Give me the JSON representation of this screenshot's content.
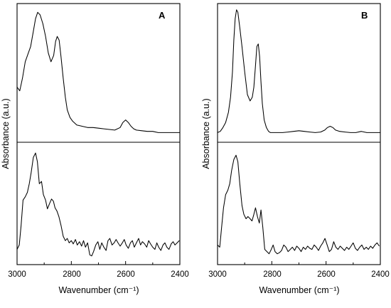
{
  "figure": {
    "panels": [
      {
        "letter": "A",
        "ylabel": "Absorbance (a.u.)",
        "xlabel": "Wavenumber (cm⁻¹)"
      },
      {
        "letter": "B",
        "ylabel": "Absorbance (a.u.)",
        "xlabel": "Wavenumber (cm⁻¹)"
      }
    ],
    "xticks": [
      "3000",
      "2800",
      "2600",
      "2400"
    ]
  },
  "chart_data": [
    {
      "type": "line",
      "panel": "A",
      "subplot": "top",
      "xlabel": "Wavenumber (cm⁻¹)",
      "ylabel": "Absorbance (a.u.)",
      "xlim": [
        3000,
        2400
      ],
      "ylim": [
        0,
        1
      ],
      "xticks": [
        3000,
        2800,
        2600,
        2400
      ],
      "series": [
        {
          "x": [
            3000,
            2990,
            2980,
            2970,
            2960,
            2950,
            2940,
            2932,
            2924,
            2915,
            2905,
            2895,
            2885,
            2875,
            2865,
            2858,
            2852,
            2845,
            2838,
            2830,
            2822,
            2815,
            2805,
            2795,
            2780,
            2760,
            2740,
            2720,
            2700,
            2680,
            2660,
            2640,
            2620,
            2610,
            2600,
            2590,
            2580,
            2570,
            2560,
            2540,
            2520,
            2500,
            2480,
            2460,
            2440,
            2420,
            2400
          ],
          "y": [
            0.38,
            0.35,
            0.45,
            0.58,
            0.64,
            0.7,
            0.82,
            0.92,
            0.97,
            0.95,
            0.88,
            0.78,
            0.65,
            0.58,
            0.63,
            0.74,
            0.78,
            0.75,
            0.62,
            0.45,
            0.3,
            0.2,
            0.14,
            0.11,
            0.08,
            0.07,
            0.06,
            0.06,
            0.055,
            0.05,
            0.045,
            0.04,
            0.06,
            0.1,
            0.12,
            0.1,
            0.07,
            0.05,
            0.04,
            0.035,
            0.03,
            0.03,
            0.02,
            0.02,
            0.02,
            0.02,
            0.02
          ]
        }
      ]
    },
    {
      "type": "line",
      "panel": "A",
      "subplot": "bottom",
      "xlabel": "Wavenumber (cm⁻¹)",
      "ylabel": "Absorbance (a.u.)",
      "xlim": [
        3000,
        2400
      ],
      "ylim": [
        0,
        1
      ],
      "xticks": [
        3000,
        2800,
        2600,
        2400
      ],
      "series": [
        {
          "x": [
            3000,
            2992,
            2985,
            2978,
            2970,
            2962,
            2955,
            2948,
            2940,
            2932,
            2925,
            2918,
            2910,
            2903,
            2895,
            2888,
            2880,
            2873,
            2866,
            2860,
            2853,
            2846,
            2838,
            2830,
            2822,
            2815,
            2808,
            2800,
            2793,
            2785,
            2778,
            2770,
            2762,
            2755,
            2748,
            2740,
            2732,
            2725,
            2718,
            2710,
            2702,
            2695,
            2688,
            2680,
            2672,
            2665,
            2658,
            2650,
            2642,
            2635,
            2628,
            2620,
            2612,
            2605,
            2598,
            2590,
            2582,
            2575,
            2568,
            2560,
            2552,
            2545,
            2538,
            2530,
            2522,
            2515,
            2508,
            2500,
            2492,
            2485,
            2478,
            2470,
            2462,
            2455,
            2448,
            2440,
            2432,
            2425,
            2418,
            2410,
            2402
          ],
          "y": [
            0.1,
            0.14,
            0.32,
            0.55,
            0.58,
            0.62,
            0.7,
            0.8,
            0.94,
            0.98,
            0.9,
            0.7,
            0.72,
            0.6,
            0.55,
            0.47,
            0.52,
            0.56,
            0.54,
            0.48,
            0.45,
            0.4,
            0.32,
            0.22,
            0.18,
            0.2,
            0.16,
            0.18,
            0.15,
            0.19,
            0.14,
            0.17,
            0.13,
            0.18,
            0.12,
            0.16,
            0.05,
            0.04,
            0.08,
            0.14,
            0.17,
            0.1,
            0.16,
            0.12,
            0.09,
            0.18,
            0.2,
            0.14,
            0.16,
            0.19,
            0.16,
            0.13,
            0.16,
            0.19,
            0.14,
            0.11,
            0.16,
            0.18,
            0.12,
            0.16,
            0.2,
            0.14,
            0.17,
            0.15,
            0.12,
            0.18,
            0.15,
            0.12,
            0.1,
            0.16,
            0.12,
            0.09,
            0.14,
            0.16,
            0.12,
            0.1,
            0.15,
            0.17,
            0.14,
            0.16,
            0.18
          ]
        }
      ]
    },
    {
      "type": "line",
      "panel": "B",
      "subplot": "top",
      "xlabel": "Wavenumber (cm⁻¹)",
      "ylabel": "Absorbance (a.u.)",
      "xlim": [
        3000,
        2400
      ],
      "ylim": [
        0,
        1
      ],
      "xticks": [
        3000,
        2800,
        2600,
        2400
      ],
      "series": [
        {
          "x": [
            3000,
            2990,
            2980,
            2970,
            2960,
            2952,
            2945,
            2940,
            2935,
            2930,
            2925,
            2918,
            2910,
            2900,
            2890,
            2880,
            2872,
            2866,
            2860,
            2855,
            2850,
            2845,
            2840,
            2835,
            2828,
            2820,
            2812,
            2805,
            2795,
            2780,
            2760,
            2740,
            2720,
            2700,
            2680,
            2660,
            2640,
            2620,
            2605,
            2595,
            2585,
            2575,
            2565,
            2550,
            2530,
            2510,
            2490,
            2470,
            2450,
            2430,
            2410,
            2400
          ],
          "y": [
            0.02,
            0.03,
            0.06,
            0.1,
            0.18,
            0.3,
            0.5,
            0.75,
            0.92,
            0.99,
            0.97,
            0.85,
            0.7,
            0.5,
            0.32,
            0.27,
            0.3,
            0.38,
            0.55,
            0.7,
            0.72,
            0.62,
            0.42,
            0.25,
            0.12,
            0.06,
            0.03,
            0.02,
            0.02,
            0.02,
            0.02,
            0.025,
            0.03,
            0.035,
            0.03,
            0.025,
            0.02,
            0.025,
            0.04,
            0.06,
            0.07,
            0.06,
            0.04,
            0.03,
            0.025,
            0.02,
            0.02,
            0.03,
            0.02,
            0.02,
            0.02,
            0.02
          ]
        }
      ]
    },
    {
      "type": "line",
      "panel": "B",
      "subplot": "bottom",
      "xlabel": "Wavenumber (cm⁻¹)",
      "ylabel": "Absorbance (a.u.)",
      "xlim": [
        3000,
        2400
      ],
      "ylim": [
        0,
        1
      ],
      "xticks": [
        3000,
        2800,
        2600,
        2400
      ],
      "series": [
        {
          "x": [
            3000,
            2992,
            2985,
            2978,
            2970,
            2962,
            2955,
            2948,
            2940,
            2932,
            2925,
            2918,
            2910,
            2903,
            2895,
            2888,
            2880,
            2873,
            2866,
            2860,
            2853,
            2846,
            2840,
            2833,
            2826,
            2818,
            2810,
            2802,
            2795,
            2788,
            2780,
            2772,
            2764,
            2756,
            2748,
            2740,
            2732,
            2724,
            2716,
            2708,
            2700,
            2692,
            2684,
            2676,
            2668,
            2660,
            2652,
            2644,
            2636,
            2628,
            2620,
            2612,
            2604,
            2596,
            2588,
            2580,
            2572,
            2564,
            2556,
            2548,
            2540,
            2532,
            2524,
            2516,
            2508,
            2500,
            2492,
            2484,
            2476,
            2468,
            2460,
            2452,
            2444,
            2436,
            2428,
            2420,
            2412,
            2404
          ],
          "y": [
            0.14,
            0.12,
            0.3,
            0.48,
            0.6,
            0.64,
            0.7,
            0.82,
            0.92,
            0.96,
            0.9,
            0.7,
            0.5,
            0.42,
            0.38,
            0.4,
            0.38,
            0.36,
            0.42,
            0.48,
            0.4,
            0.34,
            0.46,
            0.3,
            0.1,
            0.08,
            0.06,
            0.1,
            0.14,
            0.08,
            0.06,
            0.07,
            0.09,
            0.14,
            0.12,
            0.08,
            0.1,
            0.12,
            0.09,
            0.13,
            0.11,
            0.08,
            0.12,
            0.1,
            0.13,
            0.11,
            0.1,
            0.14,
            0.12,
            0.09,
            0.13,
            0.16,
            0.2,
            0.14,
            0.08,
            0.1,
            0.17,
            0.12,
            0.1,
            0.13,
            0.11,
            0.09,
            0.12,
            0.1,
            0.13,
            0.16,
            0.11,
            0.09,
            0.12,
            0.14,
            0.1,
            0.12,
            0.1,
            0.13,
            0.11,
            0.14,
            0.16,
            0.13
          ]
        }
      ]
    }
  ]
}
